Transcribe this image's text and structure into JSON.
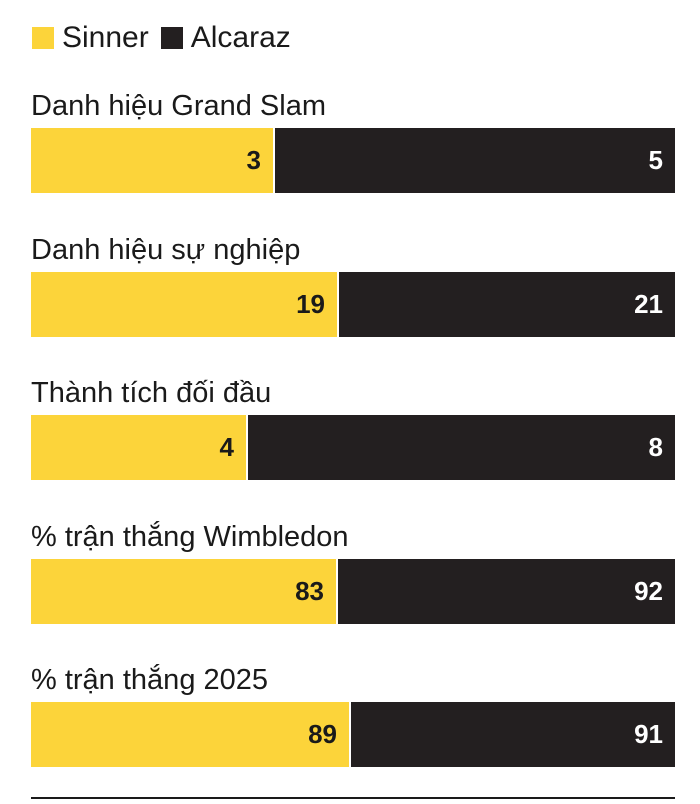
{
  "colors": {
    "sinner": "#fcd43a",
    "alcaraz": "#231f20",
    "sinner_text": "#1a1a1a",
    "alcaraz_text": "#ffffff",
    "divider": "#ffffff"
  },
  "legend": {
    "sinner": "Sinner",
    "alcaraz": "Alcaraz"
  },
  "chart_data": {
    "type": "bar",
    "orientation": "horizontal",
    "stacked": "100%",
    "title": "",
    "categories": [
      "Danh hiệu Grand Slam",
      "Danh hiệu sự nghiệp",
      "Thành tích đối đầu",
      "% trận thắng Wimbledon",
      "% trận thắng 2025"
    ],
    "series": [
      {
        "name": "Sinner",
        "values": [
          3,
          19,
          4,
          83,
          89
        ]
      },
      {
        "name": "Alcaraz",
        "values": [
          5,
          21,
          8,
          92,
          91
        ]
      }
    ],
    "legend_position": "top-left",
    "grid": false
  }
}
